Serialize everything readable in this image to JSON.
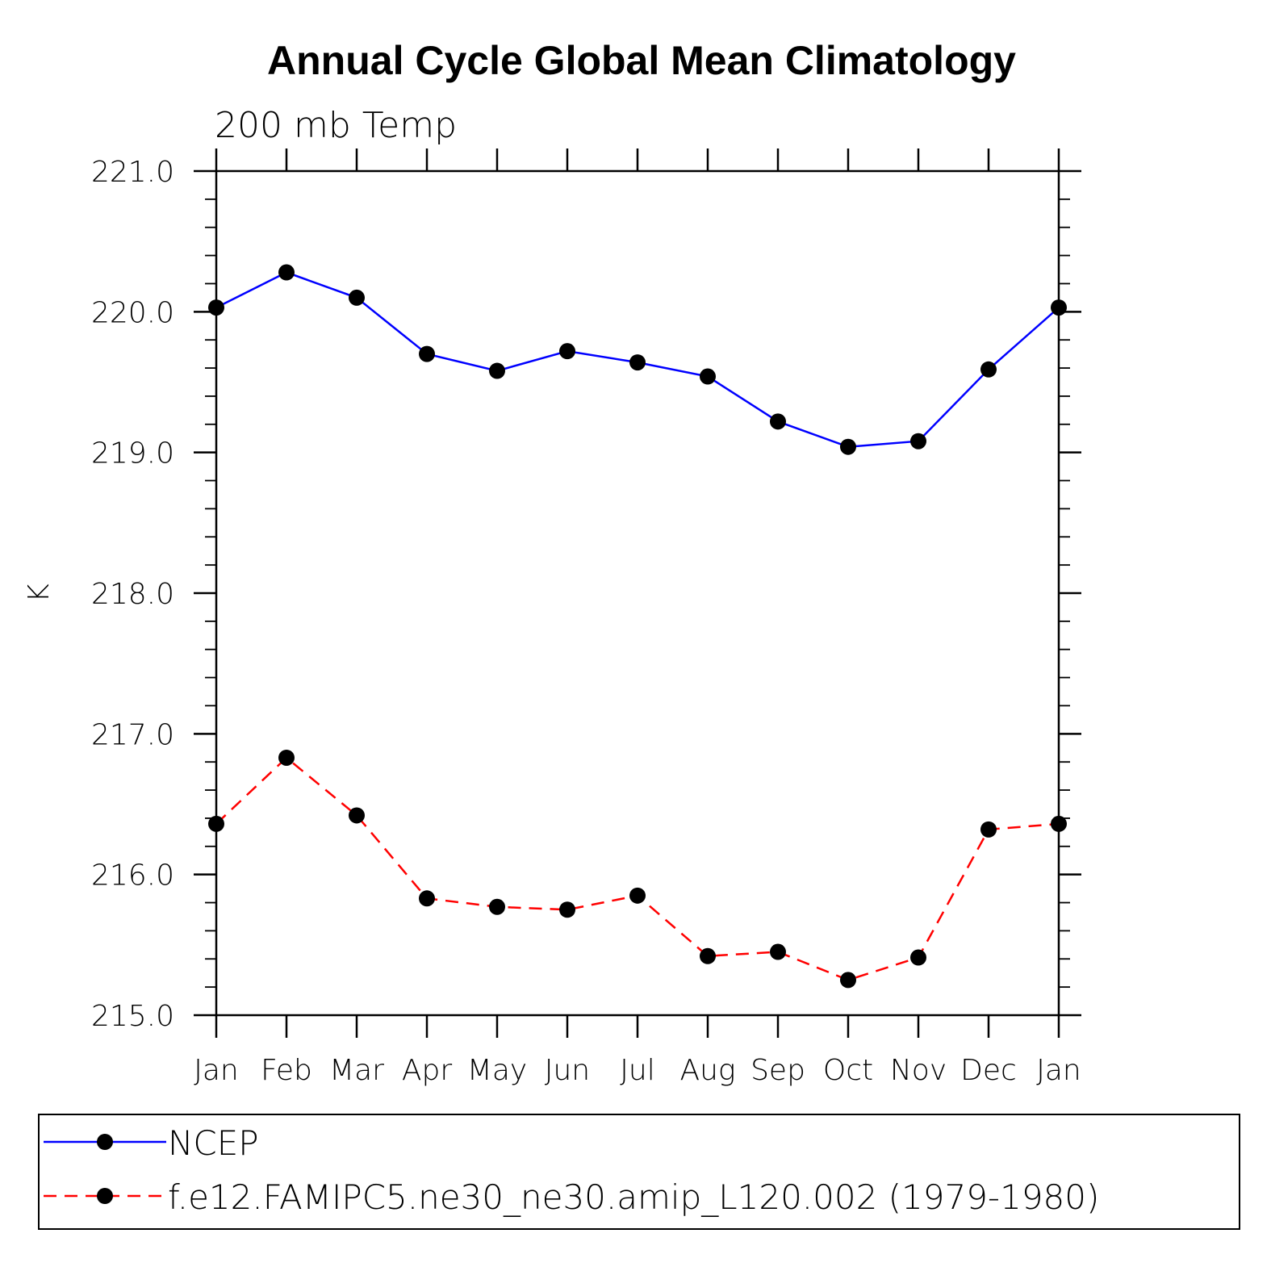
{
  "chart_data": {
    "type": "line",
    "title": "Annual Cycle Global Mean Climatology",
    "subtitle": "200 mb Temp",
    "xlabel": "",
    "ylabel": "K",
    "categories": [
      "Jan",
      "Feb",
      "Mar",
      "Apr",
      "May",
      "Jun",
      "Jul",
      "Aug",
      "Sep",
      "Oct",
      "Nov",
      "Dec",
      "Jan"
    ],
    "ylim": [
      215.0,
      221.0
    ],
    "yticks": [
      "215.0",
      "216.0",
      "217.0",
      "218.0",
      "219.0",
      "220.0",
      "221.0"
    ],
    "grid": false,
    "legend_position": "bottom",
    "series": [
      {
        "name": "NCEP",
        "color": "#0000ff",
        "dash": "solid",
        "values": [
          220.03,
          220.28,
          220.1,
          219.7,
          219.58,
          219.72,
          219.64,
          219.54,
          219.22,
          219.04,
          219.08,
          219.59,
          220.03
        ]
      },
      {
        "name": "f.e12.FAMIPC5.ne30_ne30.amip_L120.002 (1979-1980)",
        "color": "#ff0000",
        "dash": "dashed",
        "values": [
          216.36,
          216.83,
          216.42,
          215.83,
          215.77,
          215.75,
          215.85,
          215.42,
          215.45,
          215.25,
          215.41,
          216.32,
          216.36
        ]
      }
    ]
  }
}
